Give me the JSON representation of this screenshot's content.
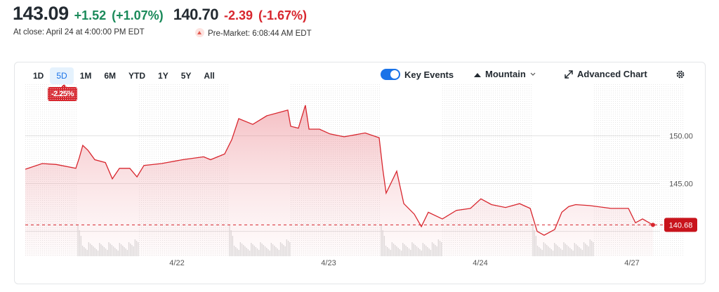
{
  "quote": {
    "price": "143.09",
    "change": "+1.52",
    "change_pct": "(+1.07%)",
    "close_label": "At close: April 24 at 4:00:00 PM EDT",
    "pre_price": "140.70",
    "pre_change": "-2.39",
    "pre_change_pct": "(-1.67%)",
    "pre_label": "Pre-Market: 6:08:44 AM EDT"
  },
  "toolbar": {
    "ranges": [
      "1D",
      "5D",
      "1M",
      "6M",
      "YTD",
      "1Y",
      "5Y",
      "All"
    ],
    "selected_range": "5D",
    "range_change": "-2.25%",
    "key_events_label": "Key Events",
    "key_events_on": true,
    "chart_type_label": "Mountain",
    "advanced_label": "Advanced Chart",
    "icons": {
      "toggle": "toggle-switch",
      "chart_type": "mountain-icon",
      "advanced": "expand-arrow-icon",
      "settings": "gear-icon"
    }
  },
  "colors": {
    "line": "#d8262e",
    "positive": "#1b8a5a",
    "negative": "#d8262e",
    "accent": "#1a73e8"
  },
  "chart_data": {
    "type": "area",
    "x_tick_labels": [
      "4/22",
      "4/23",
      "4/24",
      "4/27"
    ],
    "y_tick_labels": [
      "150.00",
      "145.00"
    ],
    "y_ticks": [
      150,
      145,
      140
    ],
    "ylim": [
      137.4,
      155.4
    ],
    "grid": true,
    "last_price": "140.68",
    "series": [
      {
        "points": [
          [
            "4/21 04:00",
            146.5
          ],
          [
            "4/21 05:47",
            147.1
          ],
          [
            "4/21 07:16",
            147.0
          ],
          [
            "4/21 09:20",
            146.6
          ],
          [
            "4/21 09:42",
            147.7
          ],
          [
            "4/21 10:04",
            149.0
          ],
          [
            "4/21 10:36",
            148.5
          ],
          [
            "4/21 11:20",
            147.5
          ],
          [
            "4/21 12:27",
            147.2
          ],
          [
            "4/21 13:11",
            145.5
          ],
          [
            "4/21 13:56",
            146.6
          ],
          [
            "4/21 15:02",
            146.6
          ],
          [
            "4/21 15:47",
            145.7
          ],
          [
            "4/21 16:31",
            146.9
          ],
          [
            "4/21 18:22",
            147.1
          ],
          [
            "4/22 04:36",
            147.5
          ],
          [
            "4/22 06:49",
            147.8
          ],
          [
            "4/22 07:33",
            147.5
          ],
          [
            "4/22 09:02",
            148.1
          ],
          [
            "4/22 09:47",
            149.6
          ],
          [
            "4/22 10:31",
            151.8
          ],
          [
            "4/22 12:00",
            151.2
          ],
          [
            "4/22 13:29",
            152.1
          ],
          [
            "4/22 14:58",
            152.5
          ],
          [
            "4/22 15:42",
            152.7
          ],
          [
            "4/22 16:00",
            151.0
          ],
          [
            "4/22 16:49",
            150.8
          ],
          [
            "4/22 17:33",
            153.2
          ],
          [
            "4/22 17:56",
            150.7
          ],
          [
            "4/22 19:02",
            150.7
          ],
          [
            "4/23 04:09",
            150.2
          ],
          [
            "4/23 05:38",
            149.9
          ],
          [
            "4/23 07:51",
            150.3
          ],
          [
            "4/23 09:20",
            149.8
          ],
          [
            "4/23 09:42",
            146.6
          ],
          [
            "4/23 10:04",
            144.0
          ],
          [
            "4/23 11:11",
            146.3
          ],
          [
            "4/23 11:56",
            142.9
          ],
          [
            "4/23 13:02",
            141.8
          ],
          [
            "4/23 13:47",
            140.5
          ],
          [
            "4/23 14:31",
            142.0
          ],
          [
            "4/23 16:00",
            141.3
          ],
          [
            "4/23 17:29",
            142.2
          ],
          [
            "4/23 18:58",
            142.4
          ],
          [
            "4/24 04:04",
            143.4
          ],
          [
            "4/24 05:11",
            142.8
          ],
          [
            "4/24 06:40",
            142.5
          ],
          [
            "4/24 08:09",
            142.9
          ],
          [
            "4/24 09:16",
            142.4
          ],
          [
            "4/24 10:00",
            140.0
          ],
          [
            "4/24 10:44",
            139.6
          ],
          [
            "4/24 11:51",
            140.2
          ],
          [
            "4/24 12:36",
            142.0
          ],
          [
            "4/24 13:20",
            142.6
          ],
          [
            "4/24 14:04",
            142.8
          ],
          [
            "4/24 15:33",
            142.7
          ],
          [
            "4/24 17:47",
            142.4
          ],
          [
            "4/24 19:38",
            142.4
          ],
          [
            "4/27 04:22",
            140.9
          ],
          [
            "4/27 05:07",
            141.3
          ],
          [
            "4/27 06:13",
            140.68
          ]
        ]
      }
    ]
  }
}
